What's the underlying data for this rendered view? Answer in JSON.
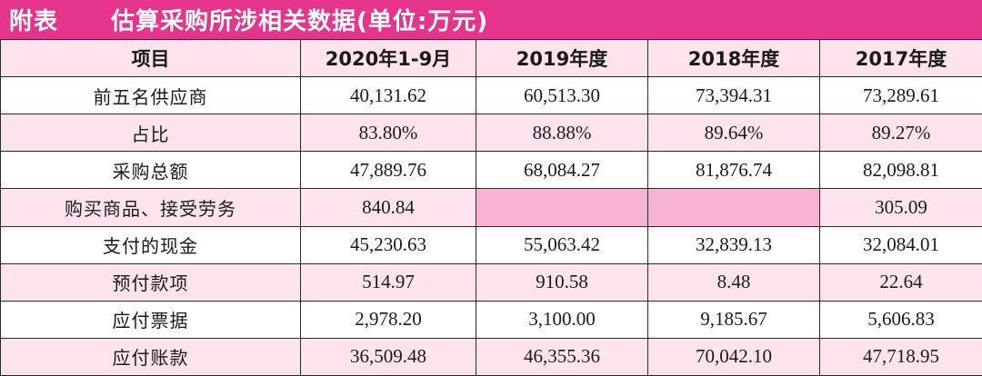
{
  "banner": {
    "tag": "附表",
    "title": "估算采购所涉相关数据(单位:万元)"
  },
  "colors": {
    "banner": "#e4358a",
    "stripe": "#fde3ee",
    "highlight": "#f7b3d2"
  },
  "table": {
    "headers": [
      "项目",
      "2020年1-9月",
      "2019年度",
      "2018年度",
      "2017年度"
    ],
    "rows": [
      {
        "label": "前五名供应商",
        "values": [
          "40,131.62",
          "60,513.30",
          "73,394.31",
          "73,289.61"
        ]
      },
      {
        "label": "占比",
        "values": [
          "83.80%",
          "88.88%",
          "89.64%",
          "89.27%"
        ]
      },
      {
        "label": "采购总额",
        "values": [
          "47,889.76",
          "68,084.27",
          "81,876.74",
          "82,098.81"
        ]
      },
      {
        "label": "购买商品、接受劳务",
        "values": [
          "840.84",
          "",
          "",
          "305.09"
        ]
      },
      {
        "label": "支付的现金",
        "values": [
          "45,230.63",
          "55,063.42",
          "32,839.13",
          "32,084.01"
        ]
      },
      {
        "label": "预付款项",
        "values": [
          "514.97",
          "910.58",
          "8.48",
          "22.64"
        ]
      },
      {
        "label": "应付票据",
        "values": [
          "2,978.20",
          "3,100.00",
          "9,185.67",
          "5,606.83"
        ]
      },
      {
        "label": "应付账款",
        "values": [
          "36,509.48",
          "46,355.36",
          "70,042.10",
          "47,718.95"
        ]
      }
    ]
  }
}
